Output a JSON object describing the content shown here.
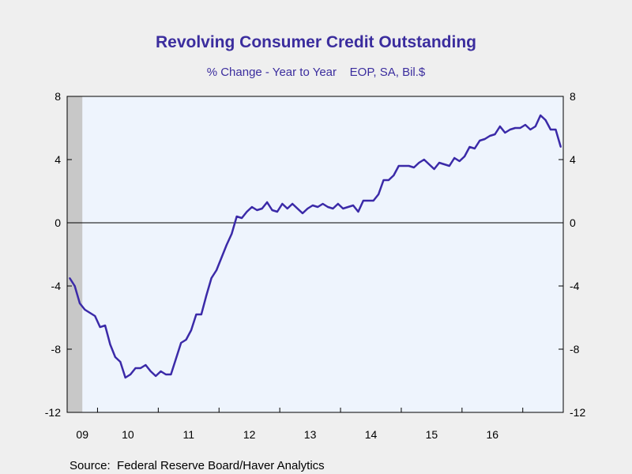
{
  "chart_data": {
    "type": "line",
    "title": "Revolving Consumer Credit Outstanding",
    "subtitle": "% Change - Year to Year    EOP, SA, Bil.$",
    "source": "Source:  Federal Reserve Board/Haver Analytics",
    "xlabel": "",
    "ylabel": "",
    "ylim": [
      -12,
      8
    ],
    "y_ticks": [
      "8",
      "4",
      "0",
      "-4",
      "-8",
      "-12"
    ],
    "x_ticks": [
      "09",
      "10",
      "11",
      "12",
      "13",
      "14",
      "15",
      "16"
    ],
    "x_start": "2009-07",
    "recession_shading": {
      "from": "2009-07",
      "to": "2009-09",
      "color": "#c8c8c8"
    },
    "zero_line": true,
    "colors": {
      "line": "#3b2aa8",
      "plot_bg": "#eef4fd",
      "text": "#3b2d9e"
    },
    "series": [
      {
        "values": [
          -3.5,
          -4.0,
          -5.1,
          -5.5,
          -5.7,
          -5.9,
          -6.6,
          -6.5,
          -7.7,
          -8.5,
          -8.8,
          -9.8,
          -9.6,
          -9.2,
          -9.2,
          -9.0,
          -9.4,
          -9.7,
          -9.4,
          -9.6,
          -9.6,
          -8.6,
          -7.6,
          -7.4,
          -6.8,
          -5.8,
          -5.8,
          -4.6,
          -3.5,
          -3.0,
          -2.2,
          -1.4,
          -0.7,
          0.4,
          0.3,
          0.7,
          1.0,
          0.8,
          0.9,
          1.3,
          0.8,
          0.7,
          1.2,
          0.9,
          1.2,
          0.9,
          0.6,
          0.9,
          1.1,
          1.0,
          1.2,
          1.0,
          0.9,
          1.2,
          0.9,
          1.0,
          1.1,
          0.7,
          1.4,
          1.4,
          1.4,
          1.8,
          2.7,
          2.7,
          3.0,
          3.6,
          3.6,
          3.6,
          3.5,
          3.8,
          4.0,
          3.7,
          3.4,
          3.8,
          3.7,
          3.6,
          4.1,
          3.9,
          4.2,
          4.8,
          4.7,
          5.2,
          5.3,
          5.5,
          5.6,
          6.1,
          5.7,
          5.9,
          6.0,
          6.0,
          6.2,
          5.9,
          6.1,
          6.8,
          6.5,
          5.9,
          5.9,
          4.8
        ]
      }
    ]
  }
}
